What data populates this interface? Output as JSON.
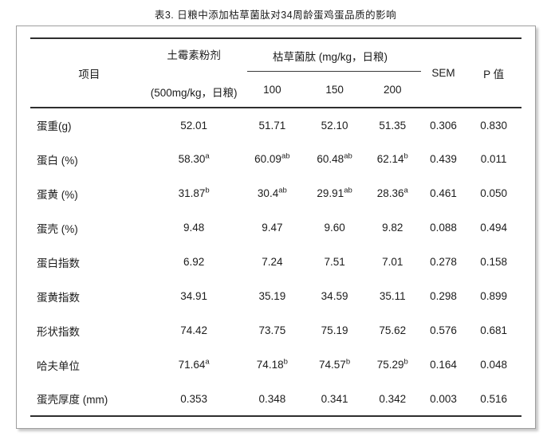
{
  "title": "表3. 日粮中添加枯草菌肽对34周龄蛋鸡蛋品质的影响",
  "colors": {
    "rule_color": "#2e2e2e",
    "border_color": "#9e9e9e",
    "text_color": "#1c1c1c"
  },
  "table": {
    "header": {
      "item": "项目",
      "control_line1": "土霉素粉剂",
      "control_line2": "(500mg/kg，日粮)",
      "group": "枯草菌肽 (mg/kg，日粮)",
      "levels": [
        "100",
        "150",
        "200"
      ],
      "sem": "SEM",
      "pvalue": "P 值"
    },
    "rows": [
      {
        "item": "蛋重(g)",
        "cells": [
          {
            "v": "52.01"
          },
          {
            "v": "51.71"
          },
          {
            "v": "52.10"
          },
          {
            "v": "51.35"
          },
          {
            "v": "0.306"
          },
          {
            "v": "0.830"
          }
        ]
      },
      {
        "item": "蛋白 (%)",
        "cells": [
          {
            "v": "58.30",
            "sup": "a"
          },
          {
            "v": "60.09",
            "sup": "ab"
          },
          {
            "v": "60.48",
            "sup": "ab"
          },
          {
            "v": "62.14",
            "sup": "b"
          },
          {
            "v": "0.439"
          },
          {
            "v": "0.011"
          }
        ]
      },
      {
        "item": "蛋黄 (%)",
        "cells": [
          {
            "v": "31.87",
            "sup": "b"
          },
          {
            "v": "30.4",
            "sup": "ab"
          },
          {
            "v": "29.91",
            "sup": "ab"
          },
          {
            "v": "28.36",
            "sup": "a"
          },
          {
            "v": "0.461"
          },
          {
            "v": "0.050"
          }
        ]
      },
      {
        "item": "蛋壳 (%)",
        "cells": [
          {
            "v": "9.48"
          },
          {
            "v": "9.47"
          },
          {
            "v": "9.60"
          },
          {
            "v": "9.82"
          },
          {
            "v": "0.088"
          },
          {
            "v": "0.494"
          }
        ]
      },
      {
        "item": "蛋白指数",
        "cells": [
          {
            "v": "6.92"
          },
          {
            "v": "7.24"
          },
          {
            "v": "7.51"
          },
          {
            "v": "7.01"
          },
          {
            "v": "0.278"
          },
          {
            "v": "0.158"
          }
        ]
      },
      {
        "item": "蛋黄指数",
        "cells": [
          {
            "v": "34.91"
          },
          {
            "v": "35.19"
          },
          {
            "v": "34.59"
          },
          {
            "v": "35.11"
          },
          {
            "v": "0.298"
          },
          {
            "v": "0.899"
          }
        ]
      },
      {
        "item": "形状指数",
        "cells": [
          {
            "v": "74.42"
          },
          {
            "v": "73.75"
          },
          {
            "v": "75.19"
          },
          {
            "v": "75.62"
          },
          {
            "v": "0.576"
          },
          {
            "v": "0.681"
          }
        ]
      },
      {
        "item": "哈夫单位",
        "cells": [
          {
            "v": "71.64",
            "sup": "a"
          },
          {
            "v": "74.18",
            "sup": "b"
          },
          {
            "v": "74.57",
            "sup": "b"
          },
          {
            "v": "75.29",
            "sup": "b"
          },
          {
            "v": "0.164"
          },
          {
            "v": "0.048"
          }
        ]
      },
      {
        "item": "蛋壳厚度 (mm)",
        "cells": [
          {
            "v": "0.353"
          },
          {
            "v": "0.348"
          },
          {
            "v": "0.341"
          },
          {
            "v": "0.342"
          },
          {
            "v": "0.003"
          },
          {
            "v": "0.516"
          }
        ]
      }
    ]
  }
}
